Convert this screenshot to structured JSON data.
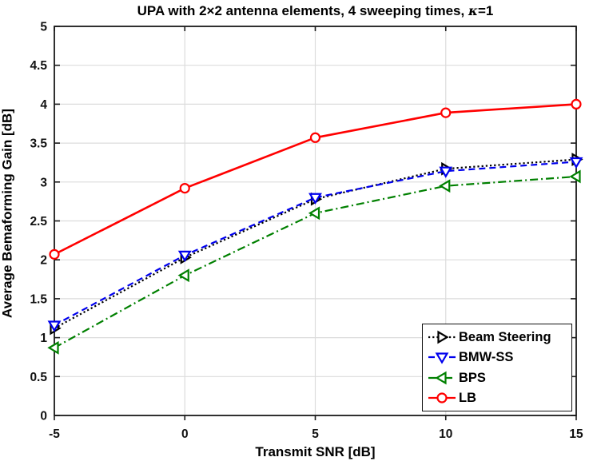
{
  "chart_data": {
    "type": "line",
    "title_main": "UPA with 2×2 antenna elements, 4 sweeping times, ",
    "title_kappa": "κ",
    "title_eq": "=1",
    "xlabel": "Transmit SNR [dB]",
    "ylabel": "Average Bemaforming Gain [dB]",
    "xlim": [
      -5,
      15
    ],
    "ylim": [
      0,
      5
    ],
    "xticks": [
      -5,
      0,
      5,
      10,
      15
    ],
    "xtick_labels": [
      "-5",
      "0",
      "5",
      "10",
      "15"
    ],
    "yticks": [
      0,
      0.5,
      1,
      1.5,
      2,
      2.5,
      3,
      3.5,
      4,
      4.5,
      5
    ],
    "ytick_labels": [
      "0",
      "0.5",
      "1",
      "1.5",
      "2",
      "2.5",
      "3",
      "3.5",
      "4",
      "4.5",
      "5"
    ],
    "grid": true,
    "legend_position": "lower-right-inside",
    "x": [
      -5,
      0,
      5,
      10,
      15
    ],
    "series": [
      {
        "name": "Beam Steering",
        "color": "#000000",
        "line_style": "dotted",
        "marker": "triangle-right",
        "values": [
          1.12,
          2.03,
          2.78,
          3.17,
          3.29
        ]
      },
      {
        "name": "BMW-SS",
        "color": "#0000EE",
        "line_style": "dashed",
        "marker": "triangle-down",
        "values": [
          1.16,
          2.06,
          2.8,
          3.14,
          3.26
        ]
      },
      {
        "name": "BPS",
        "color": "#008000",
        "line_style": "dash-dot",
        "marker": "triangle-left",
        "values": [
          0.87,
          1.8,
          2.6,
          2.95,
          3.07
        ]
      },
      {
        "name": "LB",
        "color": "#FF0000",
        "line_style": "solid",
        "marker": "circle",
        "values": [
          2.07,
          2.92,
          3.57,
          3.89,
          4.0
        ]
      }
    ],
    "colors": {
      "axis": "#1A1A1A",
      "grid": "#DCDCDC",
      "background": "#FFFFFF"
    }
  }
}
